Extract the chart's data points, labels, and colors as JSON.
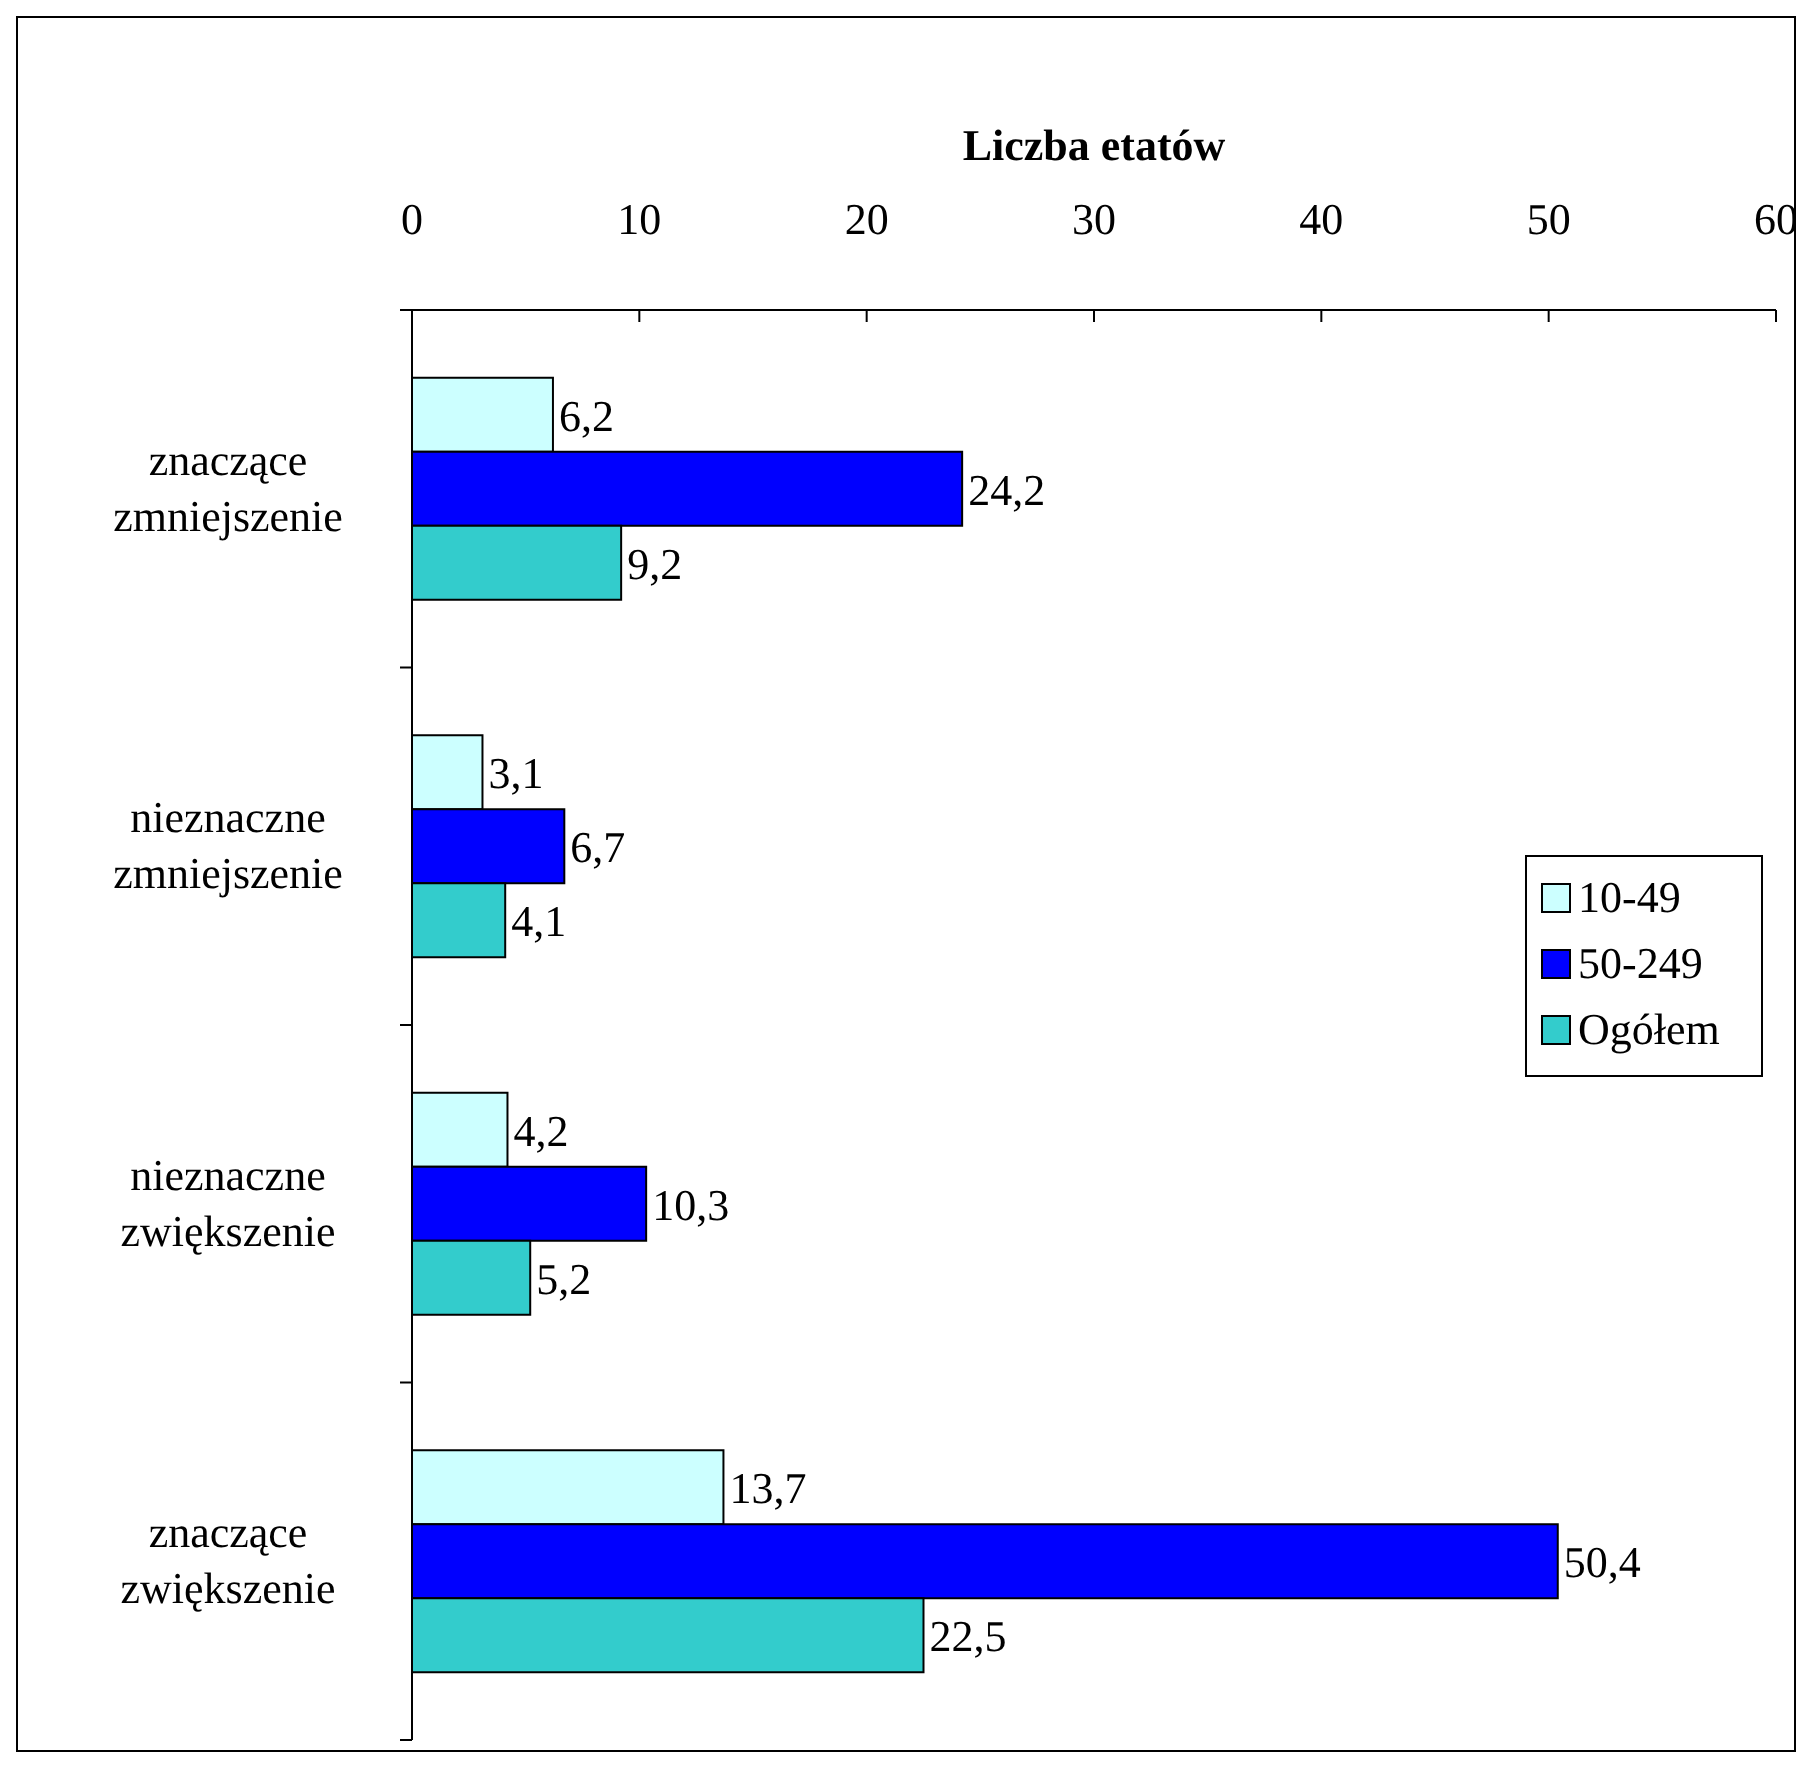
{
  "chart_data": {
    "type": "bar",
    "orientation": "horizontal",
    "xlabel": "Liczba etatów",
    "categories": [
      "znaczące\nzmniejszenie",
      "nieznaczne\nzmniejszenie",
      "nieznaczne\nzwiększenie",
      "znaczące\nzwiększenie"
    ],
    "series": [
      {
        "name": "10-49",
        "color": "#ccffff",
        "values": [
          6.2,
          3.1,
          4.2,
          13.7
        ],
        "value_labels": [
          "6,2",
          "3,1",
          "4,2",
          "13,7"
        ]
      },
      {
        "name": "50-249",
        "color": "#0000ff",
        "values": [
          24.2,
          6.7,
          10.3,
          50.4
        ],
        "value_labels": [
          "24,2",
          "6,7",
          "10,3",
          "50,4"
        ]
      },
      {
        "name": "Ogółem",
        "color": "#33cccc",
        "values": [
          9.2,
          4.1,
          5.2,
          22.5
        ],
        "value_labels": [
          "9,2",
          "4,1",
          "5,2",
          "22,5"
        ]
      }
    ],
    "xlim": [
      0,
      60
    ],
    "xticks": [
      0,
      10,
      20,
      30,
      40,
      50,
      60
    ],
    "legend": "right",
    "grid": false
  }
}
